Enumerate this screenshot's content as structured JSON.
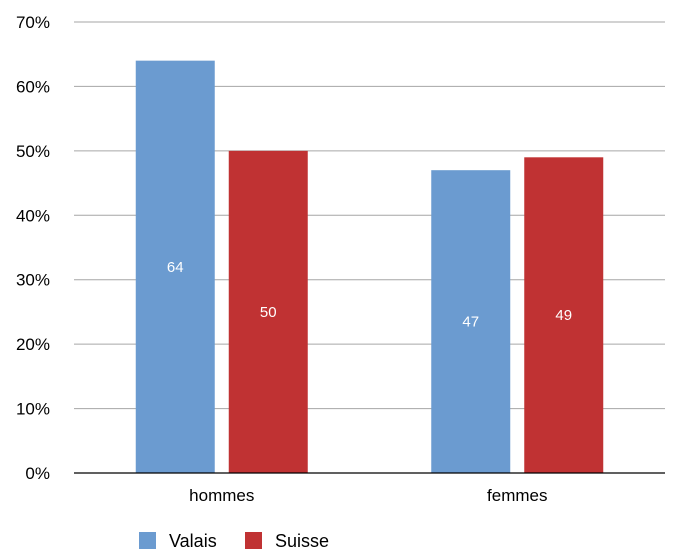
{
  "chart_data": {
    "type": "bar",
    "categories": [
      "hommes",
      "femmes"
    ],
    "series": [
      {
        "name": "Valais",
        "values": [
          64,
          47
        ],
        "labels": [
          "64",
          "47"
        ],
        "color": "#6b9bd0"
      },
      {
        "name": "Suisse",
        "values": [
          50,
          49
        ],
        "labels": [
          "50",
          "49"
        ],
        "color": "#c03233"
      }
    ],
    "y_ticks": [
      "0%",
      "10%",
      "20%",
      "30%",
      "40%",
      "50%",
      "60%",
      "70%"
    ],
    "ylim": [
      0,
      70
    ],
    "y_step": 10,
    "grid": true,
    "legend_position": "bottom-left",
    "title": "",
    "xlabel": "",
    "ylabel": ""
  }
}
